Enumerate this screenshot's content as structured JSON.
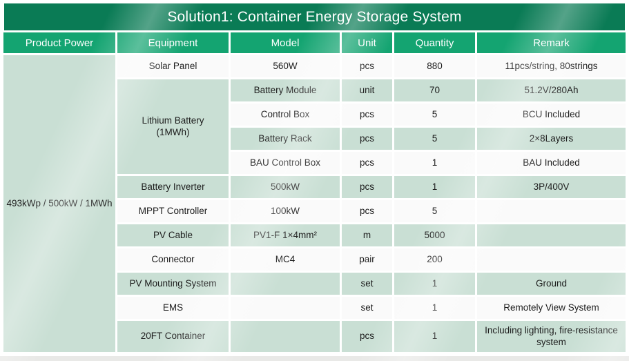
{
  "title": "Solution1: Container Energy Storage System",
  "colors": {
    "title_bar": "#0a7b55",
    "header_green": "#14a471",
    "row_green": "#c9dfd4",
    "row_white": "#fafafa",
    "footer_strip": "#e9e9e7"
  },
  "header": {
    "columns": [
      "Product Power",
      "Equipment",
      "Model",
      "Unit",
      "Quantity",
      "Remark"
    ]
  },
  "product_power": "493kWp / 500kW / 1MWh",
  "rows": [
    {
      "equipment": "Solar Panel",
      "model": "560W",
      "unit": "pcs",
      "qty": "880",
      "remark": "11pcs/string, 80strings"
    },
    {
      "equipment": "Lithium Battery (1MWh)",
      "model": "Battery Module",
      "unit": "unit",
      "qty": "70",
      "remark": "51.2V/280Ah"
    },
    {
      "equipment": "",
      "model": "Control Box",
      "unit": "pcs",
      "qty": "5",
      "remark": "BCU Included"
    },
    {
      "equipment": "",
      "model": "Battery Rack",
      "unit": "pcs",
      "qty": "5",
      "remark": "2×8Layers"
    },
    {
      "equipment": "",
      "model": "BAU Control Box",
      "unit": "pcs",
      "qty": "1",
      "remark": "BAU Included"
    },
    {
      "equipment": "Battery Inverter",
      "model": "500kW",
      "unit": "pcs",
      "qty": "1",
      "remark": "3P/400V"
    },
    {
      "equipment": "MPPT Controller",
      "model": "100kW",
      "unit": "pcs",
      "qty": "5",
      "remark": ""
    },
    {
      "equipment": "PV Cable",
      "model": "PV1-F 1×4mm²",
      "unit": "m",
      "qty": "5000",
      "remark": ""
    },
    {
      "equipment": "Connector",
      "model": "MC4",
      "unit": "pair",
      "qty": "200",
      "remark": ""
    },
    {
      "equipment": "PV Mounting System",
      "model": "",
      "unit": "set",
      "qty": "1",
      "remark": "Ground"
    },
    {
      "equipment": "EMS",
      "model": "",
      "unit": "set",
      "qty": "1",
      "remark": "Remotely View System"
    },
    {
      "equipment": "20FT Container",
      "model": "",
      "unit": "pcs",
      "qty": "1",
      "remark": "Including lighting, fire-resistance system"
    }
  ]
}
